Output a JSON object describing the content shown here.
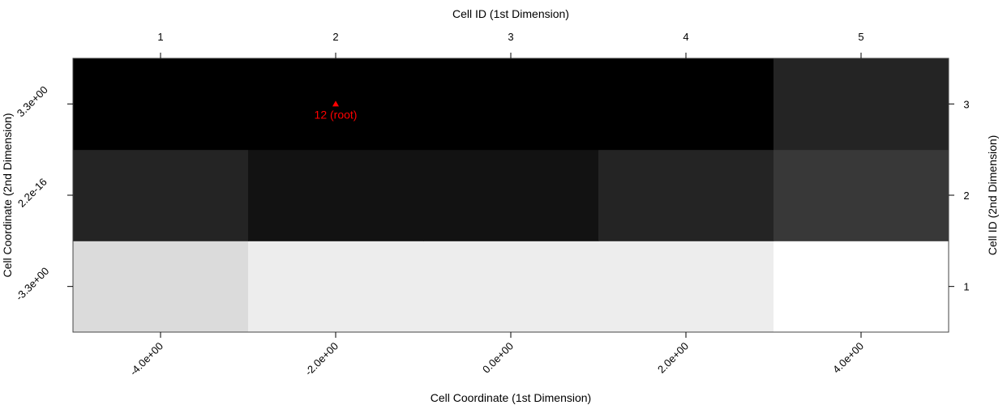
{
  "chart_data": {
    "type": "heatmap",
    "title": "",
    "xlabel": "Cell Coordinate (1st Dimension)",
    "ylabel": "Cell Coordinate (2nd Dimension)",
    "x2label": "Cell ID (1st Dimension)",
    "y2label": "Cell ID (2nd Dimension)",
    "x_ticks": [
      "-4.0e+00",
      "-2.0e+00",
      "0.0e+00",
      "2.0e+00",
      "4.0e+00"
    ],
    "y_ticks": [
      "-3.3e+00",
      "2.2e-16",
      "3.3e+00"
    ],
    "x_ids": [
      "1",
      "2",
      "3",
      "4",
      "5"
    ],
    "y_ids": [
      "1",
      "2",
      "3"
    ],
    "colors": {
      "annotation": "#ff0000"
    },
    "cells": [
      [
        0.86,
        0.93,
        0.93,
        0.93,
        1.0
      ],
      [
        0.14,
        0.07,
        0.07,
        0.14,
        0.22
      ],
      [
        0.0,
        0.0,
        0.0,
        0.0,
        0.14
      ]
    ],
    "annotation": {
      "label": "12 (root)",
      "marker": "triangle",
      "x_id": 2,
      "y_id": 3
    },
    "grid": false,
    "legend": "none"
  }
}
